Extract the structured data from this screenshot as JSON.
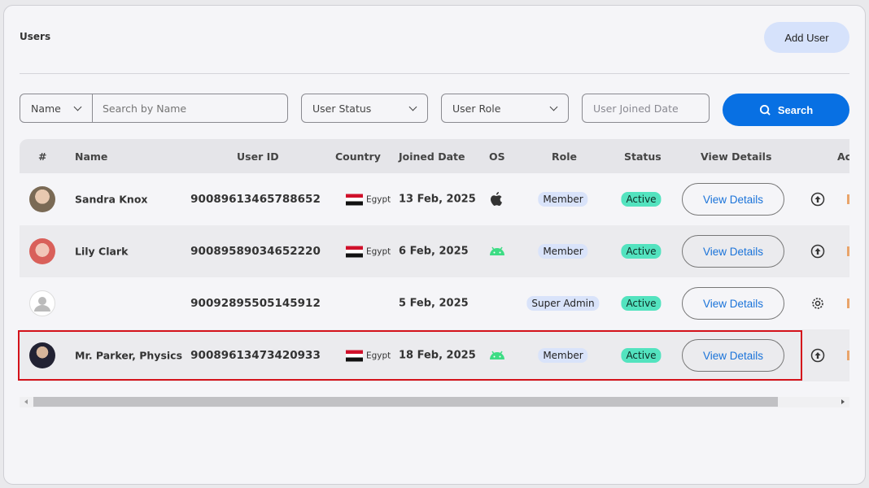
{
  "header": {
    "title": "Users",
    "add_user_label": "Add User"
  },
  "filters": {
    "name_select": "Name",
    "search_placeholder": "Search by Name",
    "status_select": "User Status",
    "role_select": "User Role",
    "date_placeholder": "User Joined Date",
    "search_label": "Search"
  },
  "table": {
    "columns": [
      "#",
      "Name",
      "User ID",
      "Country",
      "Joined Date",
      "OS",
      "Role",
      "Status",
      "View Details",
      "Ac"
    ],
    "rows": [
      {
        "name": "Sandra Knox",
        "user_id": "90089613465788652",
        "country": "Egypt",
        "joined": "13 Feb, 2025",
        "os": "apple-icon",
        "role": "Member",
        "status": "Active",
        "view": "View Details",
        "action": "upload-icon"
      },
      {
        "name": "Lily Clark",
        "user_id": "90089589034652220",
        "country": "Egypt",
        "joined": "6 Feb, 2025",
        "os": "android-icon",
        "role": "Member",
        "status": "Active",
        "view": "View Details",
        "action": "upload-icon"
      },
      {
        "name": "",
        "user_id": "90092895505145912",
        "country": "",
        "joined": "5 Feb, 2025",
        "os": "",
        "role": "Super Admin",
        "status": "Active",
        "view": "View Details",
        "action": "gear-icon"
      },
      {
        "name": "Mr. Parker, Physics",
        "user_id": "90089613473420933",
        "country": "Egypt",
        "joined": "18 Feb, 2025",
        "os": "android-icon",
        "role": "Member",
        "status": "Active",
        "view": "View Details",
        "action": "upload-icon"
      }
    ]
  },
  "colors": {
    "accent": "#0870e3",
    "status_active": "#53e3bf",
    "role_badge": "#d9e3fa",
    "highlight": "#d4131b"
  }
}
